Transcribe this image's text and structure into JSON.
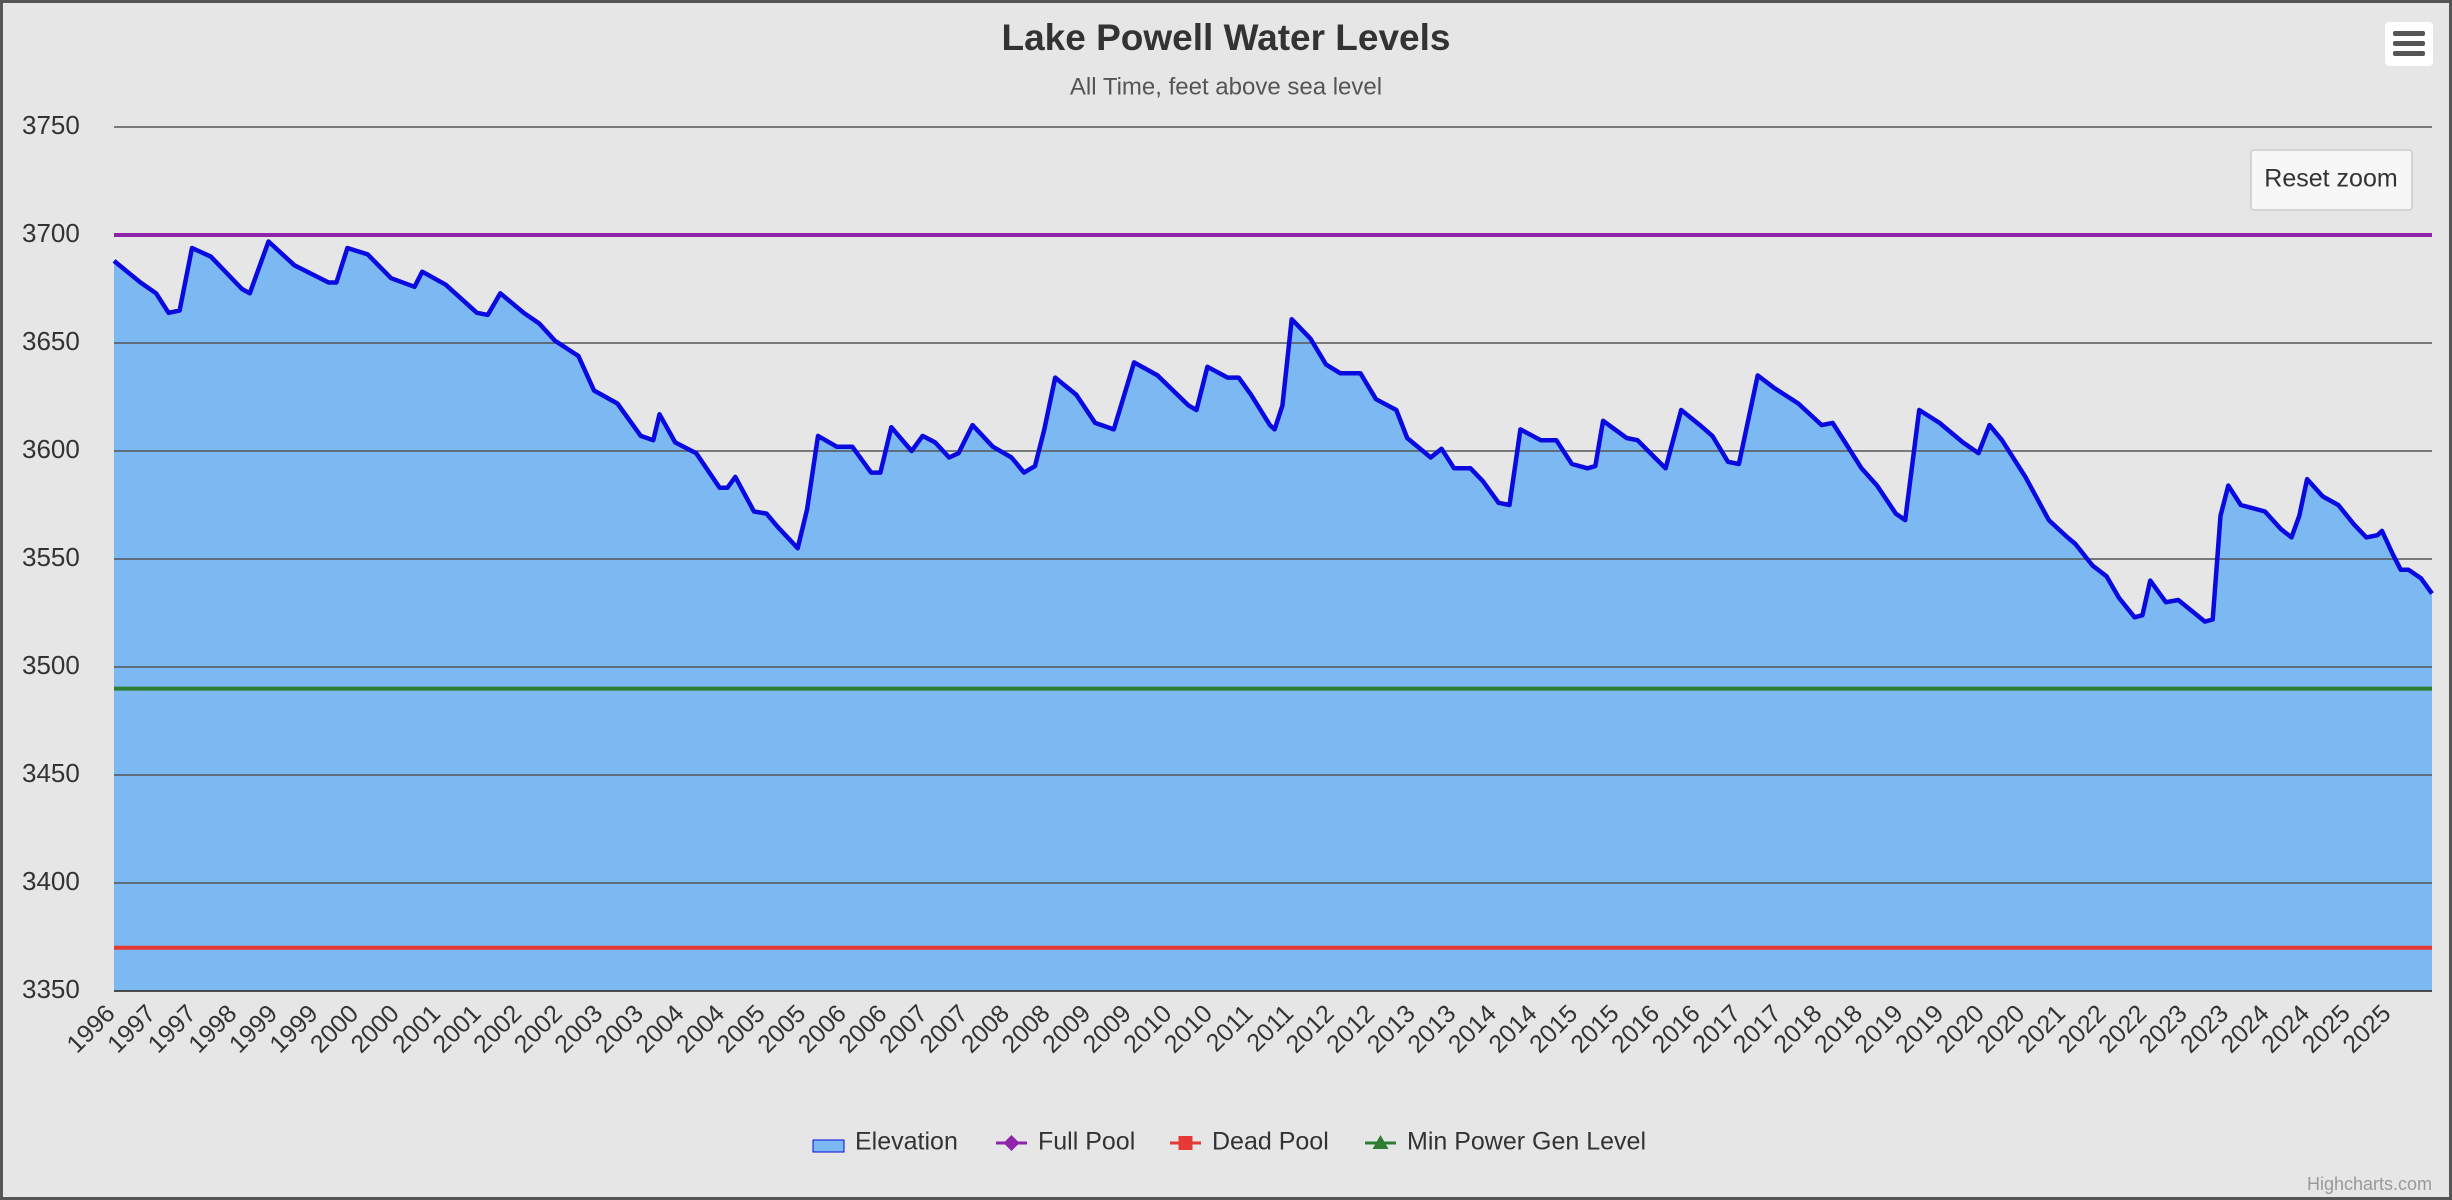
{
  "chart_data": {
    "type": "area",
    "title": "Lake Powell Water Levels",
    "subtitle": "All Time, feet above sea level",
    "reset_zoom": "Reset zoom",
    "credits": "Highcharts.com",
    "ylim": [
      3350,
      3750
    ],
    "yticks": [
      3350,
      3400,
      3450,
      3500,
      3550,
      3600,
      3650,
      3700,
      3750
    ],
    "xlim": [
      1996.41,
      2026.11
    ],
    "xticks": [
      {
        "value": 1996.44,
        "label": "1996"
      },
      {
        "value": 1996.96,
        "label": "1997"
      },
      {
        "value": 1997.48,
        "label": "1997"
      },
      {
        "value": 1998.0,
        "label": "1998"
      },
      {
        "value": 1998.52,
        "label": "1999"
      },
      {
        "value": 1999.04,
        "label": "1999"
      },
      {
        "value": 1999.56,
        "label": "2000"
      },
      {
        "value": 2000.08,
        "label": "2000"
      },
      {
        "value": 2000.61,
        "label": "2001"
      },
      {
        "value": 2001.13,
        "label": "2001"
      },
      {
        "value": 2001.65,
        "label": "2002"
      },
      {
        "value": 2002.17,
        "label": "2002"
      },
      {
        "value": 2002.69,
        "label": "2003"
      },
      {
        "value": 2003.21,
        "label": "2003"
      },
      {
        "value": 2003.73,
        "label": "2004"
      },
      {
        "value": 2004.25,
        "label": "2004"
      },
      {
        "value": 2004.77,
        "label": "2005"
      },
      {
        "value": 2005.29,
        "label": "2005"
      },
      {
        "value": 2005.81,
        "label": "2006"
      },
      {
        "value": 2006.33,
        "label": "2006"
      },
      {
        "value": 2006.85,
        "label": "2007"
      },
      {
        "value": 2007.37,
        "label": "2007"
      },
      {
        "value": 2007.9,
        "label": "2008"
      },
      {
        "value": 2008.42,
        "label": "2008"
      },
      {
        "value": 2008.94,
        "label": "2009"
      },
      {
        "value": 2009.46,
        "label": "2009"
      },
      {
        "value": 2009.98,
        "label": "2010"
      },
      {
        "value": 2010.5,
        "label": "2010"
      },
      {
        "value": 2011.02,
        "label": "2011"
      },
      {
        "value": 2011.54,
        "label": "2011"
      },
      {
        "value": 2012.06,
        "label": "2012"
      },
      {
        "value": 2012.58,
        "label": "2012"
      },
      {
        "value": 2013.1,
        "label": "2013"
      },
      {
        "value": 2013.62,
        "label": "2013"
      },
      {
        "value": 2014.14,
        "label": "2014"
      },
      {
        "value": 2014.66,
        "label": "2014"
      },
      {
        "value": 2015.18,
        "label": "2015"
      },
      {
        "value": 2015.71,
        "label": "2015"
      },
      {
        "value": 2016.23,
        "label": "2016"
      },
      {
        "value": 2016.75,
        "label": "2016"
      },
      {
        "value": 2017.27,
        "label": "2017"
      },
      {
        "value": 2017.79,
        "label": "2017"
      },
      {
        "value": 2018.31,
        "label": "2018"
      },
      {
        "value": 2018.83,
        "label": "2018"
      },
      {
        "value": 2019.35,
        "label": "2019"
      },
      {
        "value": 2019.87,
        "label": "2019"
      },
      {
        "value": 2020.39,
        "label": "2020"
      },
      {
        "value": 2020.91,
        "label": "2020"
      },
      {
        "value": 2021.43,
        "label": "2021"
      },
      {
        "value": 2021.95,
        "label": "2022"
      },
      {
        "value": 2022.47,
        "label": "2022"
      },
      {
        "value": 2022.99,
        "label": "2023"
      },
      {
        "value": 2023.52,
        "label": "2023"
      },
      {
        "value": 2024.04,
        "label": "2024"
      },
      {
        "value": 2024.56,
        "label": "2024"
      },
      {
        "value": 2025.08,
        "label": "2025"
      },
      {
        "value": 2025.6,
        "label": "2025"
      }
    ],
    "grid": true,
    "legend": "bottom",
    "series": [
      {
        "name": "Elevation",
        "color": "#0a0ae0",
        "fill_color": "#7cb9f2",
        "marker": "area",
        "x": [
          1996.41,
          1996.75,
          1996.95,
          1997.11,
          1997.25,
          1997.41,
          1997.65,
          1998.05,
          1998.15,
          1998.39,
          1998.72,
          1999.16,
          1999.26,
          1999.4,
          1999.66,
          1999.96,
          2000.26,
          2000.36,
          2000.66,
          2001.06,
          2001.2,
          2001.36,
          2001.66,
          2001.86,
          2002.06,
          2002.36,
          2002.56,
          2002.86,
          2003.16,
          2003.32,
          2003.4,
          2003.6,
          2003.87,
          2004.17,
          2004.27,
          2004.37,
          2004.61,
          2004.77,
          2004.91,
          2005.17,
          2005.29,
          2005.43,
          2005.67,
          2005.87,
          2006.11,
          2006.23,
          2006.37,
          2006.63,
          2006.77,
          2006.93,
          2007.11,
          2007.23,
          2007.41,
          2007.67,
          2007.91,
          2008.07,
          2008.21,
          2008.33,
          2008.47,
          2008.74,
          2008.98,
          2009.22,
          2009.48,
          2009.78,
          2010.18,
          2010.28,
          2010.42,
          2010.68,
          2010.82,
          2010.98,
          2011.22,
          2011.28,
          2011.38,
          2011.5,
          2011.74,
          2011.94,
          2012.12,
          2012.38,
          2012.58,
          2012.84,
          2012.98,
          2013.28,
          2013.42,
          2013.58,
          2013.79,
          2013.95,
          2014.15,
          2014.29,
          2014.43,
          2014.69,
          2014.89,
          2015.09,
          2015.29,
          2015.39,
          2015.49,
          2015.79,
          2015.93,
          2016.15,
          2016.29,
          2016.49,
          2016.73,
          2016.89,
          2017.09,
          2017.23,
          2017.47,
          2017.69,
          2017.99,
          2018.29,
          2018.43,
          2018.59,
          2018.8,
          2019.0,
          2019.24,
          2019.36,
          2019.54,
          2019.8,
          2020.1,
          2020.3,
          2020.44,
          2020.6,
          2020.9,
          2021.2,
          2021.44,
          2021.54,
          2021.76,
          2021.94,
          2022.1,
          2022.3,
          2022.4,
          2022.5,
          2022.7,
          2022.86,
          2023.1,
          2023.2,
          2023.3,
          2023.4,
          2023.5,
          2023.66,
          2023.97,
          2024.17,
          2024.31,
          2024.41,
          2024.51,
          2024.71,
          2024.91,
          2025.11,
          2025.27,
          2025.41,
          2025.47,
          2025.61,
          2025.71,
          2025.81,
          2025.97,
          2026.11
        ],
        "values": [
          3688,
          3678,
          3673,
          3664,
          3665,
          3694,
          3690,
          3675,
          3673,
          3697,
          3686,
          3678,
          3678,
          3694,
          3691,
          3680,
          3676,
          3683,
          3677,
          3664,
          3663,
          3673,
          3664,
          3659,
          3651,
          3644,
          3628,
          3622,
          3607,
          3605,
          3617,
          3604,
          3599,
          3583,
          3583,
          3588,
          3572,
          3571,
          3565,
          3555,
          3573,
          3607,
          3602,
          3602,
          3590,
          3590,
          3611,
          3600,
          3607,
          3604,
          3597,
          3599,
          3612,
          3602,
          3597,
          3590,
          3593,
          3610,
          3634,
          3626,
          3613,
          3610,
          3641,
          3635,
          3621,
          3619,
          3639,
          3634,
          3634,
          3626,
          3612,
          3610,
          3621,
          3661,
          3652,
          3640,
          3636,
          3636,
          3624,
          3619,
          3606,
          3597,
          3601,
          3592,
          3592,
          3586,
          3576,
          3575,
          3610,
          3605,
          3605,
          3594,
          3592,
          3593,
          3614,
          3606,
          3605,
          3597,
          3592,
          3619,
          3612,
          3607,
          3595,
          3594,
          3635,
          3629,
          3622,
          3612,
          3613,
          3604,
          3592,
          3584,
          3571,
          3568,
          3619,
          3613,
          3604,
          3599,
          3612,
          3605,
          3588,
          3568,
          3560,
          3557,
          3547,
          3542,
          3532,
          3523,
          3524,
          3540,
          3530,
          3531,
          3524,
          3521,
          3522,
          3570,
          3584,
          3575,
          3572,
          3564,
          3560,
          3570,
          3587,
          3579,
          3575,
          3566,
          3560,
          3561,
          3563,
          3552,
          3545,
          3545,
          3541,
          3534
        ]
      },
      {
        "name": "Full Pool",
        "color": "#8e24aa",
        "marker": "diamond",
        "values": [
          3700
        ]
      },
      {
        "name": "Dead Pool",
        "color": "#e53935",
        "marker": "square",
        "values": [
          3370
        ]
      },
      {
        "name": "Min Power Gen Level",
        "color": "#2e7d32",
        "marker": "triangle",
        "values": [
          3490
        ]
      }
    ]
  }
}
